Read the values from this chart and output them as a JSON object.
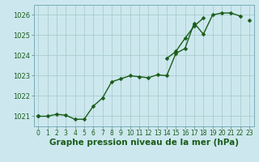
{
  "x": [
    0,
    1,
    2,
    3,
    4,
    5,
    6,
    7,
    8,
    9,
    10,
    11,
    12,
    13,
    14,
    15,
    16,
    17,
    18,
    19,
    20,
    21,
    22,
    23
  ],
  "line1": [
    1021.0,
    1021.0,
    1021.1,
    1021.05,
    1020.85,
    1020.85,
    1021.5,
    1021.9,
    1022.7,
    1022.85,
    1023.0,
    1022.95,
    1022.9,
    1023.05,
    1023.0,
    1024.1,
    1024.35,
    1025.6,
    1025.05,
    1026.0,
    1026.1,
    1026.1,
    1025.95,
    null
  ],
  "line2": [
    1021.0,
    null,
    null,
    null,
    null,
    null,
    null,
    null,
    null,
    null,
    null,
    null,
    null,
    null,
    1023.85,
    1024.2,
    1024.85,
    1025.45,
    1025.85,
    null,
    null,
    null,
    null,
    1025.75
  ],
  "ylim": [
    1020.5,
    1026.5
  ],
  "xlim": [
    -0.5,
    23.5
  ],
  "yticks": [
    1021,
    1022,
    1023,
    1024,
    1025,
    1026
  ],
  "xticks": [
    0,
    1,
    2,
    3,
    4,
    5,
    6,
    7,
    8,
    9,
    10,
    11,
    12,
    13,
    14,
    15,
    16,
    17,
    18,
    19,
    20,
    21,
    22,
    23
  ],
  "bg_color": "#cce8ee",
  "grid_color": "#aacccc",
  "line_color": "#1a5c1a",
  "xlabel": "Graphe pression niveau de la mer (hPa)",
  "xlabel_fontsize": 7.5,
  "tick_fontsize": 5.5,
  "ytick_fontsize": 6.0,
  "marker": "D",
  "marker_size": 2.5,
  "line_width": 1.0
}
